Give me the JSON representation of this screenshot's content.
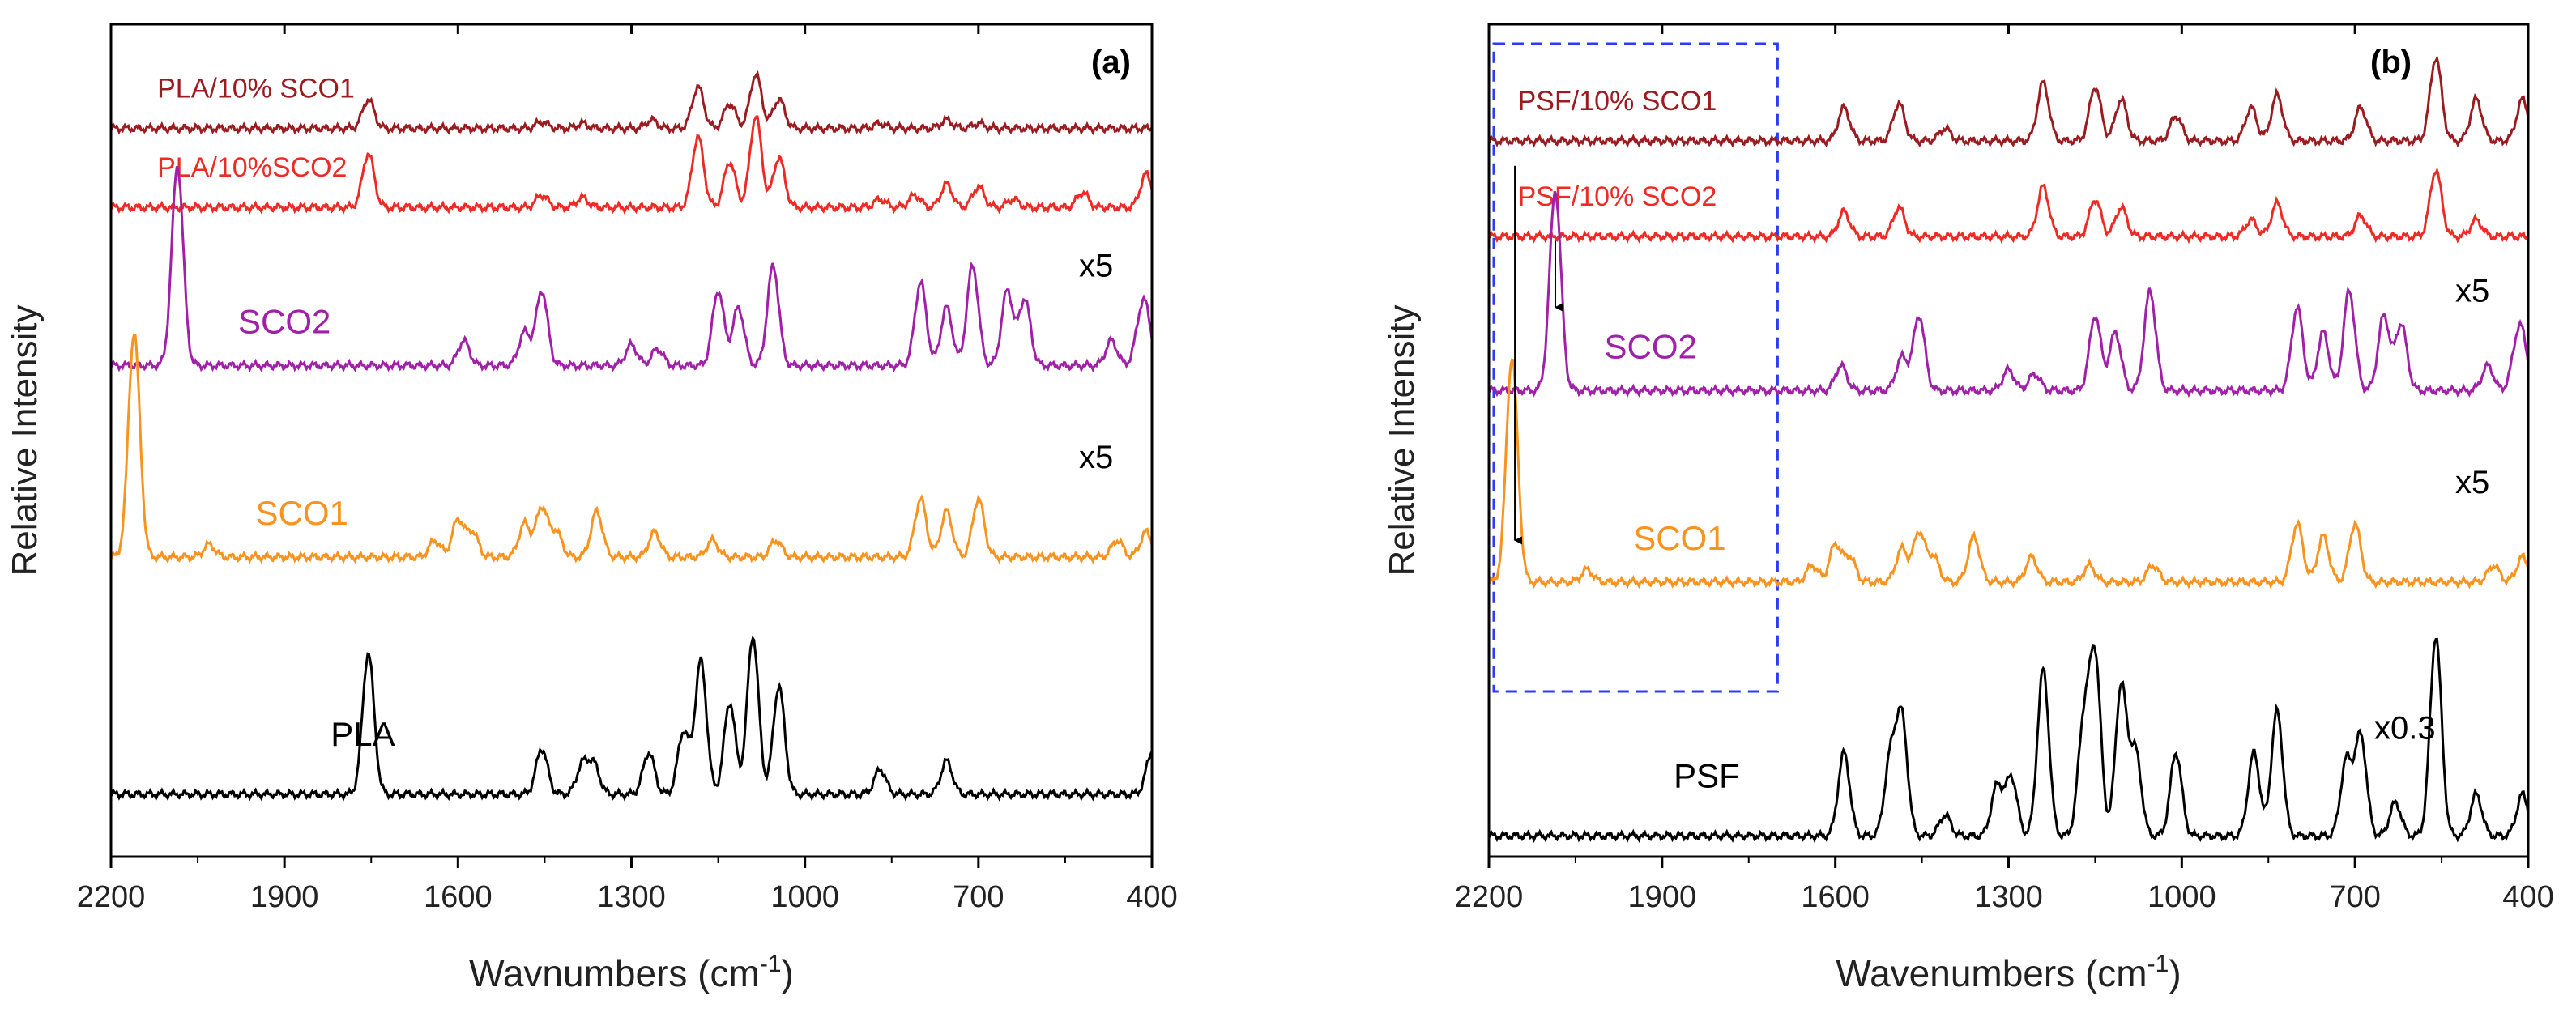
{
  "chart_data": [
    {
      "type": "line",
      "panel_label": "(a)",
      "title": "",
      "xlabel": "Wavnumbers (cm",
      "xlabel_superscript": "-1",
      "xlabel_suffix": ")",
      "ylabel": "Relative Intensity",
      "x_reversed": true,
      "xlim": [
        2200,
        400
      ],
      "xticks": [
        "2200",
        "1900",
        "1600",
        "1300",
        "1000",
        "700",
        "400"
      ],
      "xtick_values": [
        2200,
        1900,
        1600,
        1300,
        1000,
        700,
        400
      ],
      "y_axis_ticks": false,
      "series": [
        {
          "name": "PLA/10% SCO1",
          "color": "#9b1c20",
          "label_x": 2120,
          "label_level": 0.6,
          "scale_label": "",
          "baseline": 0.875,
          "peaks": [
            [
              1755,
              0.035
            ],
            [
              1455,
              0.008
            ],
            [
              1385,
              0.006
            ],
            [
              1265,
              0.01
            ],
            [
              1185,
              0.05
            ],
            [
              1130,
              0.03
            ],
            [
              1085,
              0.065
            ],
            [
              1045,
              0.035
            ],
            [
              870,
              0.006
            ],
            [
              755,
              0.01
            ],
            [
              700,
              0.006
            ]
          ]
        },
        {
          "name": "PLA/10%SCO2",
          "color": "#ee2a24",
          "label_x": 2120,
          "label_level": 0.6,
          "scale_label": "",
          "baseline": 0.78,
          "peaks": [
            [
              1755,
              0.065
            ],
            [
              1455,
              0.015
            ],
            [
              1385,
              0.012
            ],
            [
              1185,
              0.085
            ],
            [
              1130,
              0.055
            ],
            [
              1085,
              0.11
            ],
            [
              1045,
              0.06
            ],
            [
              870,
              0.01
            ],
            [
              810,
              0.015
            ],
            [
              755,
              0.028
            ],
            [
              700,
              0.025
            ],
            [
              640,
              0.01
            ],
            [
              520,
              0.018
            ],
            [
              410,
              0.04
            ]
          ]
        },
        {
          "name": "SCO2",
          "color": "#a020a8",
          "label_x": 1980,
          "label_level": 0.3,
          "scale_label": "x5",
          "baseline": 0.59,
          "peaks": [
            [
              2085,
              0.24
            ],
            [
              1590,
              0.03
            ],
            [
              1485,
              0.04
            ],
            [
              1455,
              0.09
            ],
            [
              1300,
              0.025
            ],
            [
              1255,
              0.02
            ],
            [
              1150,
              0.09
            ],
            [
              1115,
              0.07
            ],
            [
              1055,
              0.12
            ],
            [
              800,
              0.1
            ],
            [
              755,
              0.07
            ],
            [
              710,
              0.12
            ],
            [
              650,
              0.09
            ],
            [
              620,
              0.08
            ],
            [
              470,
              0.03
            ],
            [
              420,
              0.04
            ],
            [
              410,
              0.05
            ]
          ]
        },
        {
          "name": "SCO1",
          "color": "#f7931e",
          "label_x": 1950,
          "label_level": 0.35,
          "scale_label": "x5",
          "baseline": 0.36,
          "peaks": [
            [
              2160,
              0.27
            ],
            [
              2030,
              0.015
            ],
            [
              1640,
              0.02
            ],
            [
              1600,
              0.045
            ],
            [
              1575,
              0.03
            ],
            [
              1485,
              0.04
            ],
            [
              1455,
              0.06
            ],
            [
              1430,
              0.03
            ],
            [
              1360,
              0.055
            ],
            [
              1260,
              0.03
            ],
            [
              1160,
              0.02
            ],
            [
              1050,
              0.02
            ],
            [
              800,
              0.07
            ],
            [
              755,
              0.055
            ],
            [
              700,
              0.07
            ],
            [
              460,
              0.02
            ],
            [
              410,
              0.03
            ]
          ]
        },
        {
          "name": "PLA",
          "color": "#000000",
          "label_x": 1820,
          "label_level": 0.45,
          "scale_label": "",
          "baseline": 0.075,
          "peaks": [
            [
              1755,
              0.17
            ],
            [
              1455,
              0.055
            ],
            [
              1385,
              0.035
            ],
            [
              1365,
              0.035
            ],
            [
              1270,
              0.05
            ],
            [
              1210,
              0.075
            ],
            [
              1180,
              0.16
            ],
            [
              1130,
              0.11
            ],
            [
              1090,
              0.19
            ],
            [
              1045,
              0.13
            ],
            [
              870,
              0.03
            ],
            [
              755,
              0.04
            ],
            [
              400,
              0.05
            ]
          ]
        }
      ]
    },
    {
      "type": "line",
      "panel_label": "(b)",
      "title": "",
      "xlabel": "Wavenumbers (cm",
      "xlabel_superscript": "-1",
      "xlabel_suffix": ")",
      "ylabel": "Relative Intensity",
      "x_reversed": true,
      "xlim": [
        2200,
        400
      ],
      "xticks": [
        "2200",
        "1900",
        "1600",
        "1300",
        "1000",
        "700",
        "400"
      ],
      "xtick_values": [
        2200,
        1900,
        1600,
        1300,
        1000,
        700,
        400
      ],
      "y_axis_ticks": false,
      "highlight_box": {
        "x_from": 2200,
        "x_to": 1700,
        "style": "dashed",
        "color": "#2b3cf5"
      },
      "arrows": [
        {
          "x": 2155,
          "from_level": 0.83,
          "to_level": 0.38
        },
        {
          "x": 2085,
          "from_level": 0.74,
          "to_level": 0.66
        }
      ],
      "series": [
        {
          "name": "PSF/10% SCO1",
          "color": "#9b1c20",
          "label_x": 2150,
          "label_level": 0.6,
          "scale_label": "",
          "baseline": 0.86,
          "peaks": [
            [
              1585,
              0.04
            ],
            [
              1490,
              0.045
            ],
            [
              1410,
              0.015
            ],
            [
              1240,
              0.07
            ],
            [
              1150,
              0.065
            ],
            [
              1105,
              0.05
            ],
            [
              1010,
              0.03
            ],
            [
              880,
              0.04
            ],
            [
              835,
              0.055
            ],
            [
              690,
              0.04
            ],
            [
              560,
              0.1
            ],
            [
              490,
              0.05
            ],
            [
              410,
              0.05
            ]
          ]
        },
        {
          "name": "PSF/10% SCO2",
          "color": "#ee2a24",
          "label_x": 2150,
          "label_level": 0.6,
          "scale_label": "",
          "baseline": 0.745,
          "peaks": [
            [
              1585,
              0.03
            ],
            [
              1490,
              0.035
            ],
            [
              1240,
              0.06
            ],
            [
              1150,
              0.045
            ],
            [
              1105,
              0.035
            ],
            [
              880,
              0.02
            ],
            [
              835,
              0.04
            ],
            [
              690,
              0.025
            ],
            [
              560,
              0.08
            ],
            [
              490,
              0.02
            ]
          ]
        },
        {
          "name": "SCO2",
          "color": "#a020a8",
          "label_x": 2000,
          "label_level": 0.3,
          "scale_label": "x5",
          "baseline": 0.56,
          "peaks": [
            [
              2085,
              0.24
            ],
            [
              1590,
              0.03
            ],
            [
              1485,
              0.04
            ],
            [
              1455,
              0.09
            ],
            [
              1300,
              0.025
            ],
            [
              1255,
              0.02
            ],
            [
              1150,
              0.09
            ],
            [
              1115,
              0.07
            ],
            [
              1055,
              0.12
            ],
            [
              800,
              0.1
            ],
            [
              755,
              0.07
            ],
            [
              710,
              0.12
            ],
            [
              650,
              0.09
            ],
            [
              620,
              0.08
            ],
            [
              470,
              0.03
            ],
            [
              420,
              0.04
            ],
            [
              410,
              0.05
            ]
          ]
        },
        {
          "name": "SCO1",
          "color": "#f7931e",
          "label_x": 1950,
          "label_level": 0.4,
          "scale_label": "x5",
          "baseline": 0.33,
          "peaks": [
            [
              2160,
              0.27
            ],
            [
              2030,
              0.015
            ],
            [
              1640,
              0.02
            ],
            [
              1600,
              0.045
            ],
            [
              1575,
              0.03
            ],
            [
              1485,
              0.04
            ],
            [
              1455,
              0.06
            ],
            [
              1430,
              0.03
            ],
            [
              1360,
              0.055
            ],
            [
              1260,
              0.03
            ],
            [
              1160,
              0.02
            ],
            [
              1050,
              0.02
            ],
            [
              800,
              0.07
            ],
            [
              755,
              0.055
            ],
            [
              700,
              0.07
            ],
            [
              460,
              0.02
            ],
            [
              410,
              0.03
            ]
          ]
        },
        {
          "name": "PSF",
          "color": "#000000",
          "label_x": 1880,
          "label_level": 0.45,
          "scale_label": "x0.3",
          "baseline": 0.025,
          "peaks": [
            [
              1585,
              0.1
            ],
            [
              1505,
              0.09
            ],
            [
              1485,
              0.14
            ],
            [
              1410,
              0.025
            ],
            [
              1320,
              0.06
            ],
            [
              1295,
              0.07
            ],
            [
              1240,
              0.2
            ],
            [
              1170,
              0.13
            ],
            [
              1150,
              0.21
            ],
            [
              1105,
              0.18
            ],
            [
              1080,
              0.1
            ],
            [
              1010,
              0.1
            ],
            [
              875,
              0.1
            ],
            [
              835,
              0.15
            ],
            [
              715,
              0.09
            ],
            [
              690,
              0.12
            ],
            [
              630,
              0.04
            ],
            [
              560,
              0.24
            ],
            [
              490,
              0.05
            ],
            [
              410,
              0.05
            ]
          ]
        }
      ]
    }
  ]
}
